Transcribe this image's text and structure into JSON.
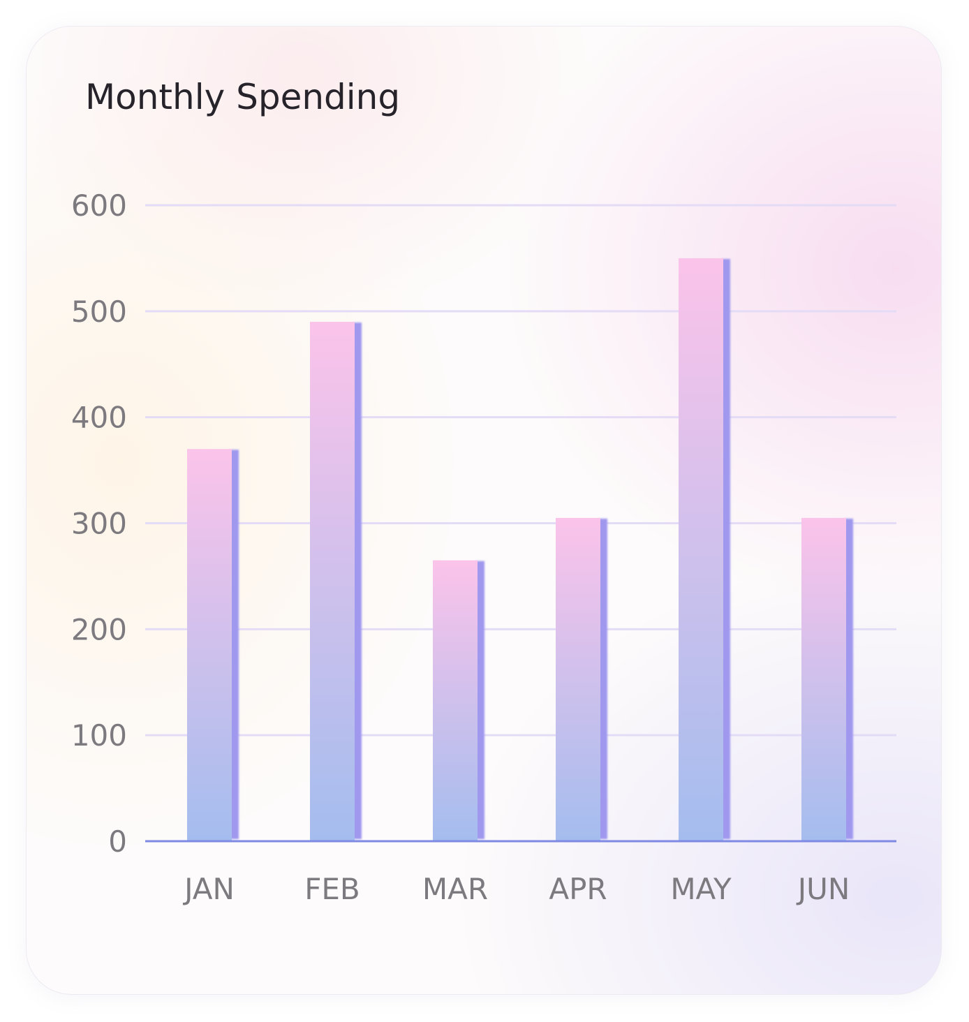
{
  "chart_data": {
    "type": "bar",
    "title": "Monthly Spending",
    "categories": [
      "JAN",
      "FEB",
      "MAR",
      "APR",
      "MAY",
      "JUN"
    ],
    "values": [
      370,
      490,
      265,
      305,
      550,
      305
    ],
    "yticks": [
      "0",
      "100",
      "200",
      "300",
      "400",
      "500",
      "600"
    ],
    "ylim": [
      0,
      600
    ],
    "xlabel": "",
    "ylabel": "",
    "grid": true,
    "colors": {
      "bar_top": "#fbc3ea",
      "bar_bottom": "#a4bdee",
      "bar_side": "#9f98ee",
      "grid": "#e4dcf6",
      "baseline": "#7d89e2"
    }
  }
}
